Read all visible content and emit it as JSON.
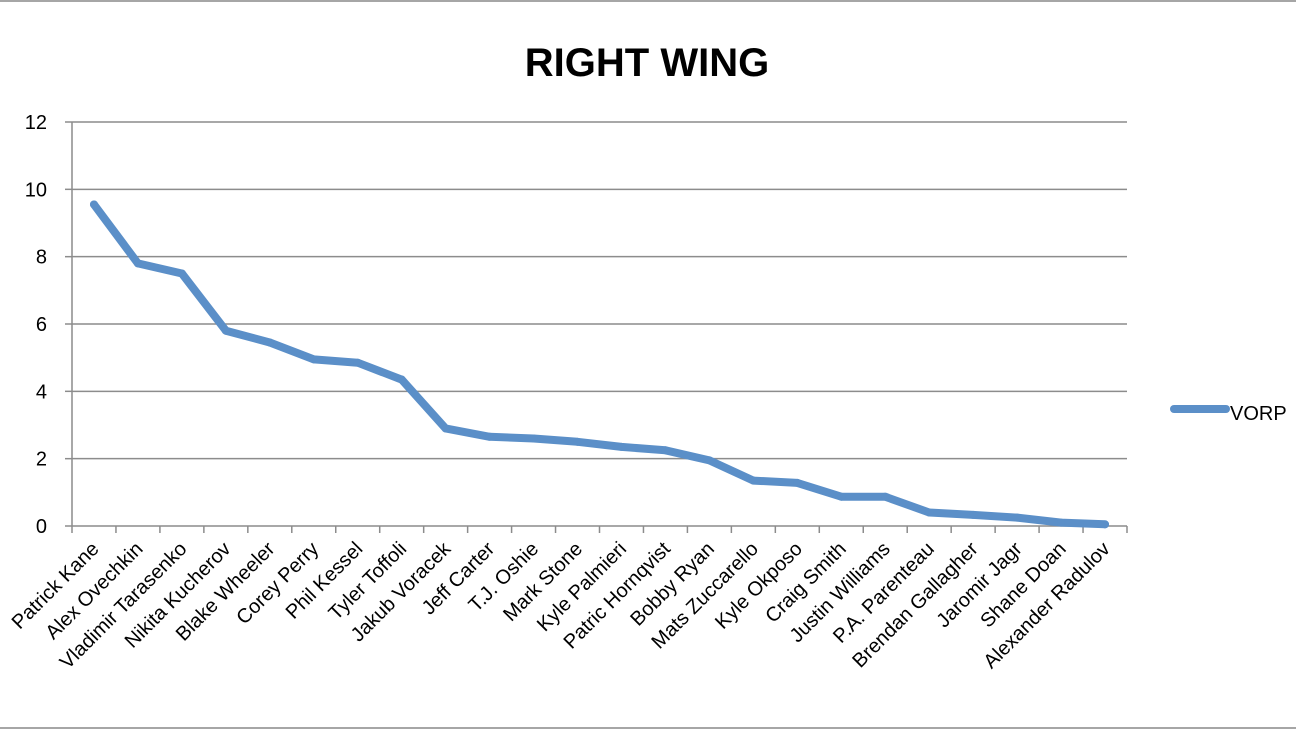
{
  "chart_data": {
    "type": "line",
    "title": "RIGHT WING",
    "xlabel": "",
    "ylabel": "",
    "ylim": [
      0,
      12
    ],
    "yticks": [
      0,
      2,
      4,
      6,
      8,
      10,
      12
    ],
    "grid": true,
    "legend": "right",
    "categories": [
      "Patrick Kane",
      "Alex Ovechkin",
      "Vladimir Tarasenko",
      "Nikita Kucherov",
      "Blake Wheeler",
      "Corey Perry",
      "Phil Kessel",
      "Tyler Toffoli",
      "Jakub Voracek",
      "Jeff Carter",
      "T.J. Oshie",
      "Mark Stone",
      "Kyle Palmieri",
      "Patric Hornqvist",
      "Bobby Ryan",
      "Mats Zuccarello",
      "Kyle Okposo",
      "Craig Smith",
      "Justin Williams",
      "P.A. Parenteau",
      "Brendan Gallagher",
      "Jaromir Jagr",
      "Shane Doan",
      "Alexander Radulov"
    ],
    "series": [
      {
        "name": "VORP",
        "color": "#5b8fc8",
        "values": [
          9.55,
          7.8,
          7.5,
          5.8,
          5.45,
          4.95,
          4.85,
          4.35,
          2.9,
          2.65,
          2.6,
          2.5,
          2.35,
          2.25,
          1.95,
          1.35,
          1.28,
          0.87,
          0.87,
          0.4,
          0.33,
          0.25,
          0.1,
          0.05
        ]
      }
    ]
  }
}
